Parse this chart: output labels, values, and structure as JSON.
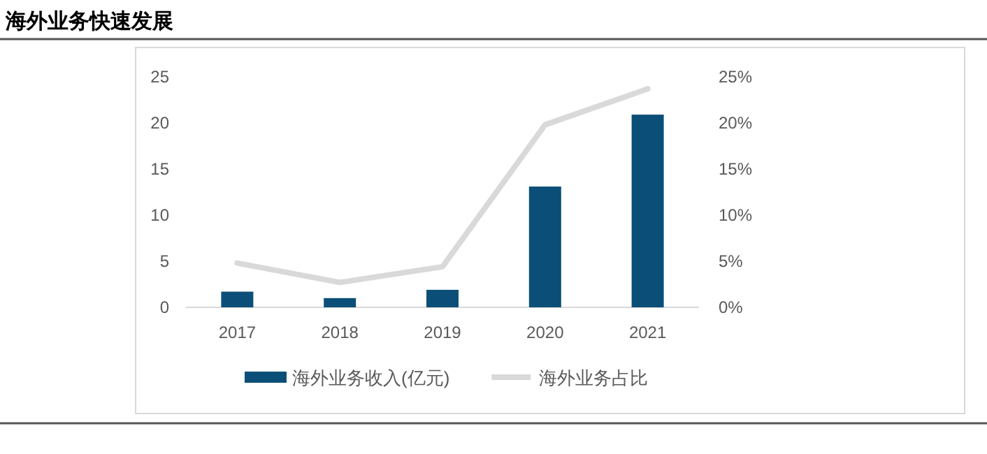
{
  "chart_data": {
    "type": "bar",
    "title": "海外业务快速发展",
    "categories": [
      "2017",
      "2018",
      "2019",
      "2020",
      "2021"
    ],
    "series": [
      {
        "name": "海外业务收入(亿元)",
        "color": "#0b4f78",
        "values": [
          1.7,
          1.0,
          1.9,
          13.1,
          20.9
        ]
      },
      {
        "name": "海外业务占比",
        "type": "line",
        "axis": "y2",
        "color": "#d9d9d9",
        "values": [
          0.048,
          0.027,
          0.044,
          0.198,
          0.237
        ]
      }
    ],
    "ylim": [
      0,
      25
    ],
    "yticks": [
      0,
      5,
      10,
      15,
      20,
      25
    ],
    "y2lim": [
      0,
      0.25
    ],
    "y2ticks": [
      {
        "value": 0,
        "label": "0%"
      },
      {
        "value": 0.05,
        "label": "5%"
      },
      {
        "value": 0.1,
        "label": "10%"
      },
      {
        "value": 0.15,
        "label": "15%"
      },
      {
        "value": 0.2,
        "label": "20%"
      },
      {
        "value": 0.25,
        "label": "25%"
      }
    ],
    "legend": "bottom"
  }
}
